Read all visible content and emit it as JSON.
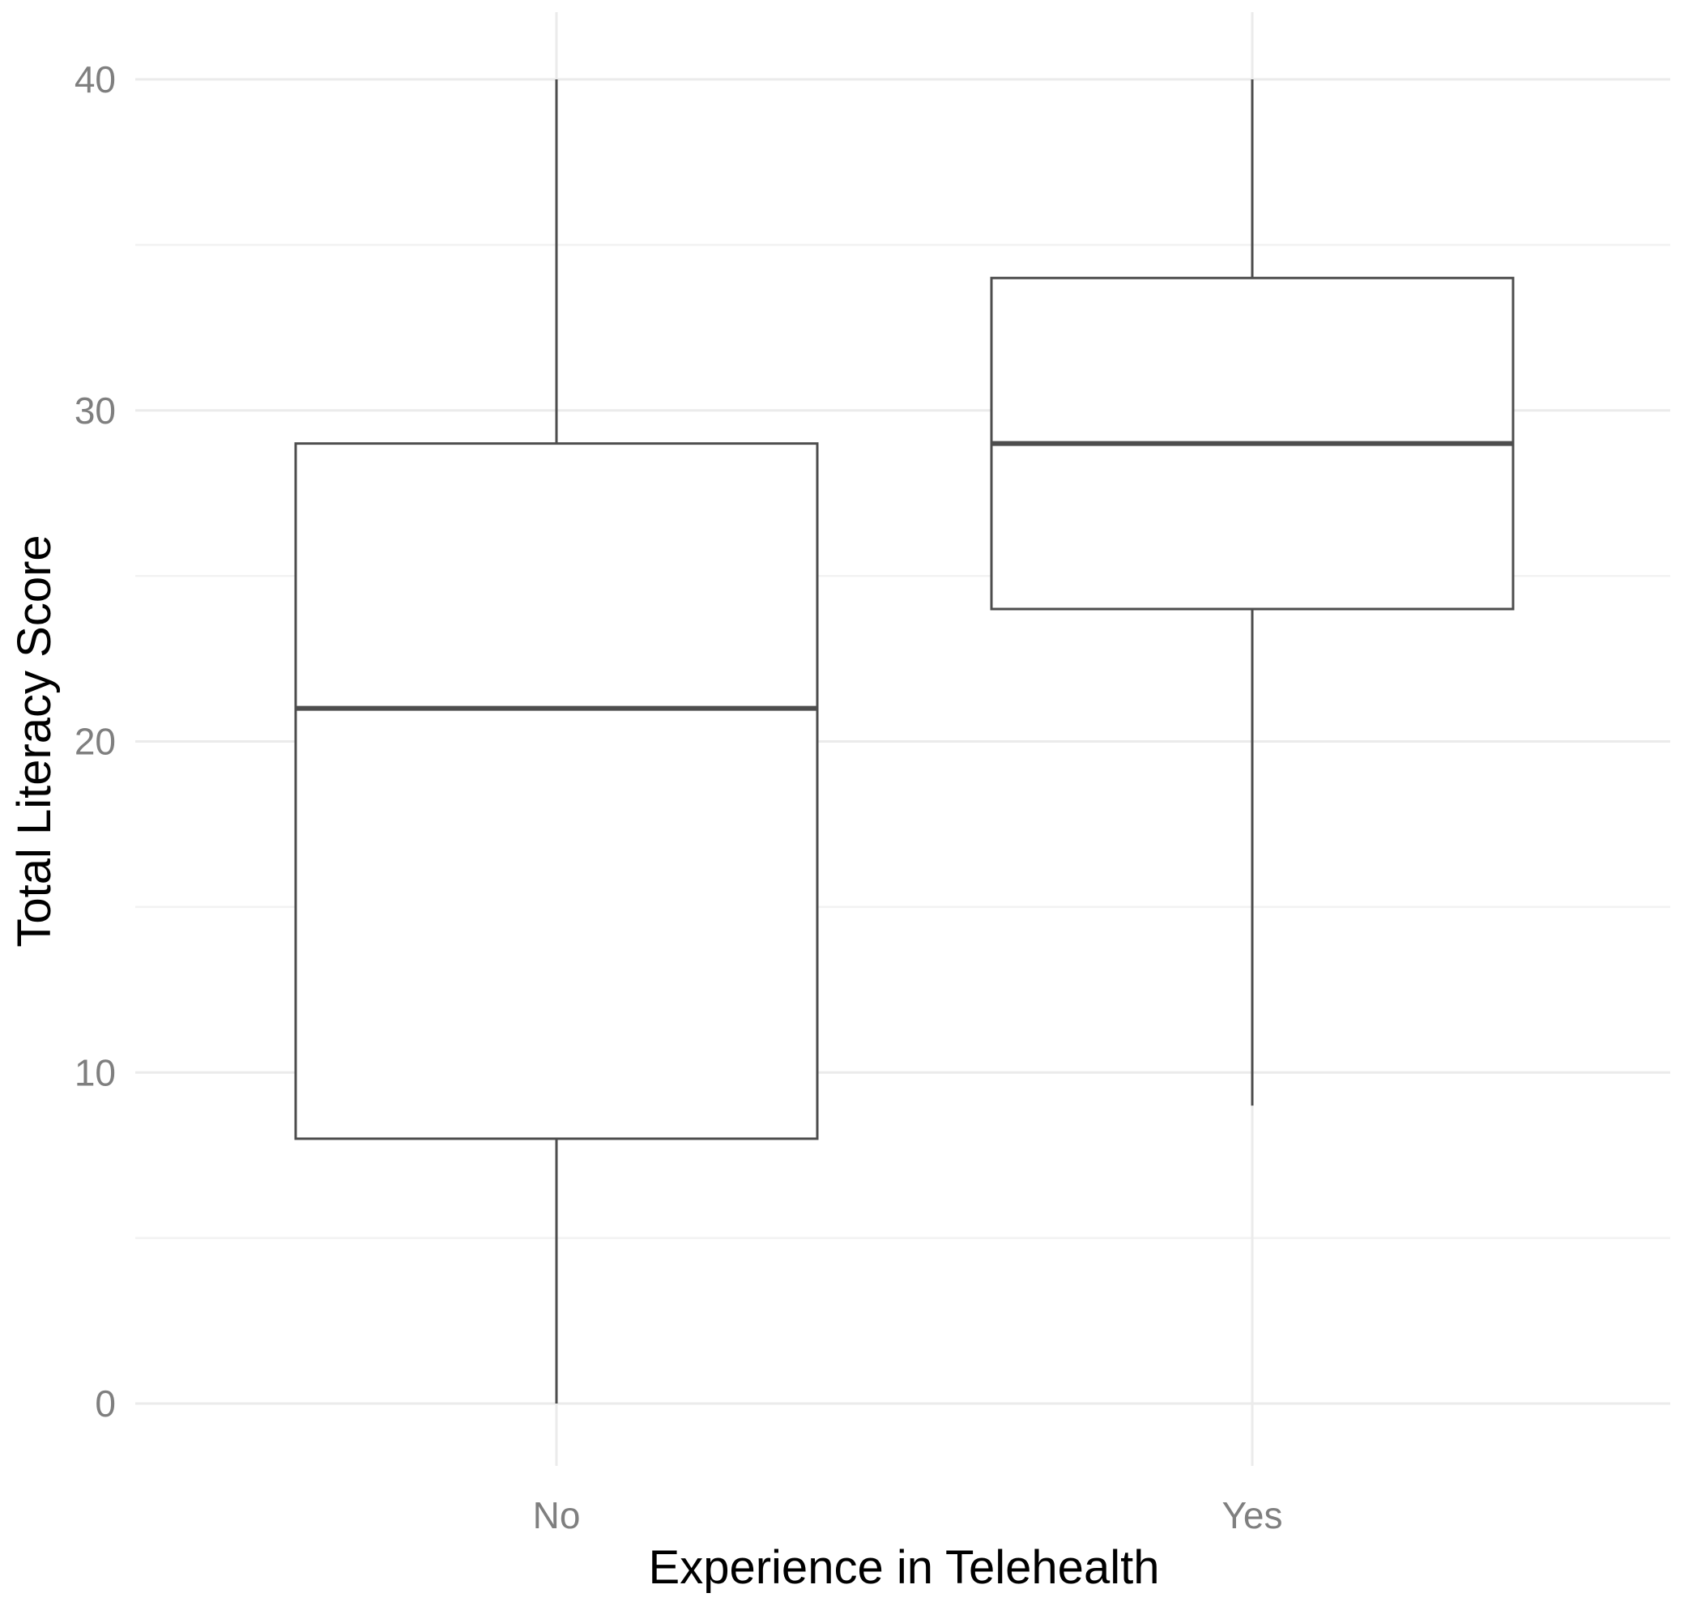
{
  "chart_data": {
    "type": "boxplot",
    "title": "",
    "xlabel": "Experience in Telehealth",
    "ylabel": "Total Literacy Score",
    "categories": [
      "No",
      "Yes"
    ],
    "ylim": [
      -2,
      42
    ],
    "yticks": [
      0,
      10,
      20,
      30,
      40
    ],
    "yticks_minor": [
      5,
      15,
      25,
      35
    ],
    "grid": true,
    "legend": "none",
    "boxes": [
      {
        "category": "No",
        "whisker_low": 0,
        "q1": 8,
        "median": 21,
        "q3": 29,
        "whisker_high": 40
      },
      {
        "category": "Yes",
        "whisker_low": 9,
        "q1": 24,
        "median": 29,
        "q3": 34,
        "whisker_high": 40
      }
    ],
    "colors": {
      "box_stroke": "#4d4d4d",
      "grid": "#ebebeb",
      "tick_text": "#7f7f7f"
    }
  }
}
